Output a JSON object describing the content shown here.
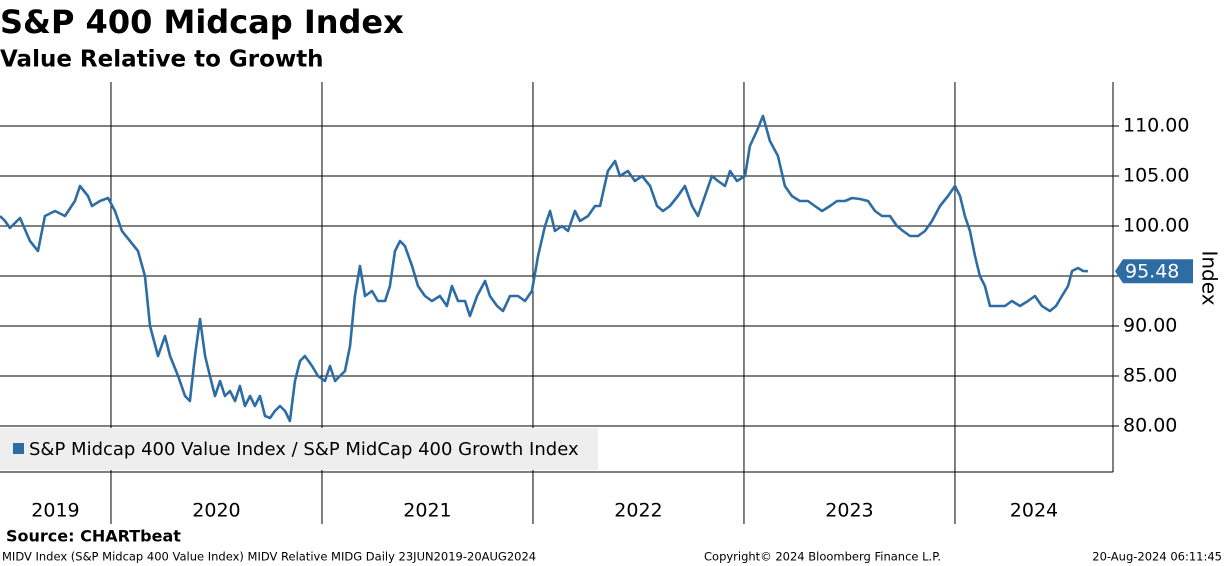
{
  "chart_data": {
    "type": "line",
    "title": "S&P 400 Midcap Index",
    "subtitle": "Value Relative to Growth",
    "y_axis_label": "Index",
    "source": "Source: CHARTbeat",
    "footnote": "MIDV Index (S&P Midcap 400 Value Index) MIDV Relative MIDG  Daily 23JUN2019-20AUG2024",
    "copyright": "Copyright© 2024 Bloomberg Finance L.P.",
    "timestamp": "20-Aug-2024 06:11:45",
    "year_labels": [
      "2019",
      "2020",
      "2021",
      "2022",
      "2023",
      "2024"
    ],
    "x": [
      2019.474,
      2019.498,
      2019.521,
      2019.569,
      2019.616,
      2019.654,
      2019.687,
      2019.735,
      2019.782,
      2019.829,
      2019.853,
      2019.891,
      2019.91,
      2019.948,
      2019.986,
      2020.019,
      2020.052,
      2020.09,
      2020.128,
      2020.161,
      2020.185,
      2020.223,
      2020.256,
      2020.28,
      2020.318,
      2020.351,
      2020.374,
      2020.398,
      2020.422,
      2020.446,
      2020.469,
      2020.493,
      2020.517,
      2020.54,
      2020.564,
      2020.588,
      2020.611,
      2020.635,
      2020.659,
      2020.682,
      2020.706,
      2020.73,
      2020.754,
      2020.777,
      2020.801,
      2020.825,
      2020.848,
      2020.872,
      2020.896,
      2020.919,
      2020.953,
      2020.981,
      2021.014,
      2021.038,
      2021.062,
      2021.085,
      2021.109,
      2021.133,
      2021.156,
      2021.18,
      2021.204,
      2021.237,
      2021.265,
      2021.299,
      2021.322,
      2021.346,
      2021.37,
      2021.393,
      2021.427,
      2021.455,
      2021.488,
      2021.521,
      2021.559,
      2021.592,
      2021.616,
      2021.645,
      2021.678,
      2021.701,
      2021.735,
      2021.773,
      2021.796,
      2021.83,
      2021.858,
      2021.891,
      2021.929,
      2021.962,
      2021.995,
      2022.024,
      2022.057,
      2022.081,
      2022.104,
      2022.137,
      2022.166,
      2022.199,
      2022.223,
      2022.261,
      2022.294,
      2022.318,
      2022.355,
      2022.389,
      2022.412,
      2022.45,
      2022.483,
      2022.517,
      2022.555,
      2022.588,
      2022.616,
      2022.649,
      2022.687,
      2022.72,
      2022.754,
      2022.782,
      2022.815,
      2022.848,
      2022.877,
      2022.91,
      2022.934,
      2022.967,
      2023.005,
      2023.028,
      2023.061,
      2023.09,
      2023.123,
      2023.161,
      2023.194,
      2023.227,
      2023.265,
      2023.303,
      2023.336,
      2023.37,
      2023.408,
      2023.441,
      2023.479,
      2023.512,
      2023.55,
      2023.588,
      2023.621,
      2023.654,
      2023.692,
      2023.725,
      2023.754,
      2023.787,
      2023.825,
      2023.858,
      2023.891,
      2023.929,
      2023.967,
      2024.0,
      2024.024,
      2024.047,
      2024.071,
      2024.095,
      2024.118,
      2024.142,
      2024.166,
      2024.199,
      2024.237,
      2024.27,
      2024.308,
      2024.346,
      2024.379,
      2024.412,
      2024.45,
      2024.479,
      2024.507,
      2024.536,
      2024.555,
      2024.583,
      2024.607,
      2024.63
    ],
    "series": [
      {
        "name": "S&P Midcap 400 Value Index / S&P MidCap 400 Growth Index",
        "color": "#2e6ca4",
        "values": [
          101,
          100.5,
          99.8,
          100.8,
          98.5,
          97.5,
          101,
          101.5,
          101,
          102.5,
          104,
          103,
          102,
          102.5,
          102.8,
          101.5,
          99.5,
          98.5,
          97.5,
          95,
          90,
          87,
          89,
          87,
          85,
          83,
          82.5,
          87,
          90.7,
          87,
          85,
          83,
          84.5,
          83,
          83.5,
          82.5,
          84,
          82,
          83,
          82,
          83,
          81,
          80.8,
          81.5,
          82,
          81.5,
          80.5,
          84.5,
          86.5,
          87,
          86,
          85,
          84.5,
          86,
          84.5,
          85,
          85.5,
          88,
          93,
          96,
          93,
          93.5,
          92.5,
          92.5,
          94,
          97.5,
          98.5,
          98,
          96,
          94,
          93,
          92.5,
          93,
          92,
          94,
          92.5,
          92.5,
          91,
          93,
          94.5,
          93,
          92,
          91.5,
          93,
          93,
          92.5,
          93.5,
          97,
          100,
          101.5,
          99.5,
          100,
          99.5,
          101.5,
          100.5,
          101,
          102,
          102,
          105.5,
          106.5,
          105,
          105.5,
          104.5,
          105,
          104,
          102,
          101.5,
          102,
          103,
          104,
          102,
          101,
          103,
          105,
          104.5,
          104,
          105.5,
          104.5,
          105,
          108,
          109.5,
          111,
          108.5,
          107,
          104,
          103,
          102.5,
          102.5,
          102,
          101.5,
          102,
          102.5,
          102.5,
          102.8,
          102.7,
          102.5,
          101.5,
          101,
          101,
          100,
          99.5,
          99,
          99,
          99.5,
          100.5,
          102,
          103,
          104,
          103,
          101,
          99.5,
          97,
          95,
          94,
          92,
          92,
          92,
          92.5,
          92,
          92.5,
          93,
          92,
          91.5,
          92,
          93,
          94,
          95.5,
          95.8,
          95.5,
          95.48
        ]
      }
    ],
    "xlim": [
      2019.474,
      2024.749
    ],
    "xticks": [
      2020,
      2021,
      2022,
      2023,
      2024
    ],
    "ylim": [
      75.4,
      114.4
    ],
    "yticks": [
      {
        "value": 80,
        "label": "80.00"
      },
      {
        "value": 85,
        "label": "85.00"
      },
      {
        "value": 90,
        "label": "90.00"
      },
      {
        "value": 95,
        "label": "95.00"
      },
      {
        "value": 100,
        "label": "100.00"
      },
      {
        "value": 105,
        "label": "105.00"
      },
      {
        "value": 110,
        "label": "110.00"
      }
    ],
    "grid": true,
    "legend": "lower left"
  }
}
